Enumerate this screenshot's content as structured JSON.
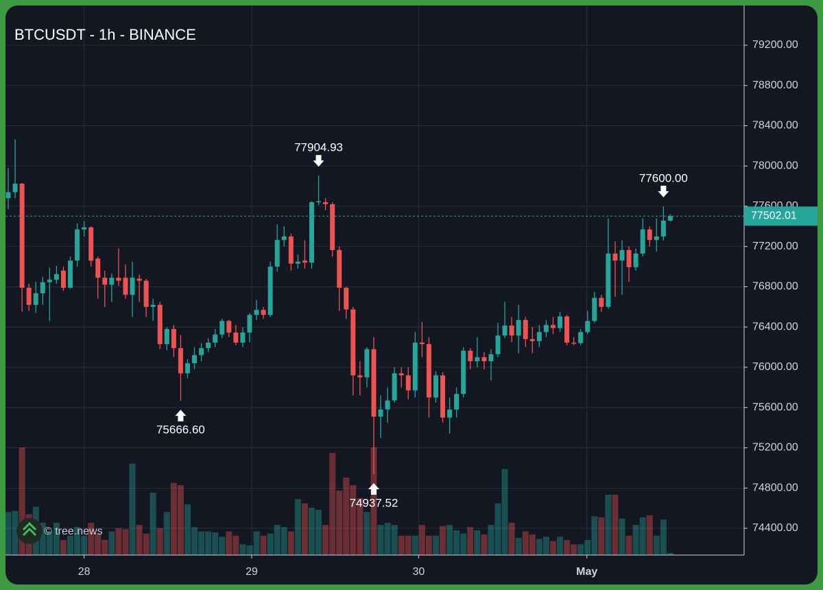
{
  "chart_data": {
    "type": "candlestick",
    "title": "BTCUSDT - 1h - BINANCE",
    "watermark": "© tree.news",
    "up_color": "#26a69a",
    "down_color": "#ef5350",
    "grid": true,
    "xlim": [
      -0.4,
      106.7
    ],
    "ylim": [
      74134,
      79595
    ],
    "vlim": [
      0,
      100
    ],
    "xticks": [
      {
        "value": 11,
        "label": "28"
      },
      {
        "value": 35.3,
        "label": "29"
      },
      {
        "value": 59.5,
        "label": "30"
      },
      {
        "value": 83.9,
        "label": "May"
      }
    ],
    "yticks": [
      {
        "value": 74400,
        "label": "74400.00"
      },
      {
        "value": 74800,
        "label": "74800.00"
      },
      {
        "value": 75200,
        "label": "75200.00"
      },
      {
        "value": 75600,
        "label": "75600.00"
      },
      {
        "value": 76000,
        "label": "76000.00"
      },
      {
        "value": 76400,
        "label": "76400.00"
      },
      {
        "value": 76800,
        "label": "76800.00"
      },
      {
        "value": 77200,
        "label": "77200.00"
      },
      {
        "value": 77600,
        "label": "77600.00"
      },
      {
        "value": 78000,
        "label": "78000.00"
      },
      {
        "value": 78400,
        "label": "78400.00"
      },
      {
        "value": 78800,
        "label": "78800.00"
      },
      {
        "value": 79200,
        "label": "79200.00"
      }
    ],
    "last_price": 77502.01,
    "annotations": [
      {
        "value": 77904.93,
        "kind": "high"
      },
      {
        "value": 75666.6,
        "label": "75666.60",
        "kind": "low"
      },
      {
        "value": 74937.52,
        "kind": "low"
      },
      {
        "value": 77600,
        "label": "77600.00",
        "kind": "high"
      }
    ],
    "open": [
      77680,
      77740,
      77825,
      76790,
      76620,
      76735,
      76845,
      76870,
      76960,
      76790,
      77060,
      77370,
      77390,
      77080,
      76890,
      76820,
      76890,
      76890,
      76720,
      76880,
      76860,
      76600,
      76620,
      76230,
      76380,
      76190,
      75940,
      76040,
      76120,
      76190,
      76245,
      76325,
      76460,
      76345,
      76245,
      76345,
      76520,
      76570,
      76520,
      77000,
      77265,
      77300,
      77030,
      77060,
      77040,
      77640,
      77640,
      77620,
      77165,
      76790,
      76575,
      75920,
      75900,
      76180,
      75510,
      75580,
      75670,
      75940,
      75920,
      75770,
      76245,
      76230,
      75700,
      75920,
      75500,
      75580,
      75735,
      76165,
      76060,
      76100,
      76060,
      76130,
      76315,
      76415,
      76315,
      76470,
      76280,
      76260,
      76350,
      76420,
      76390,
      76505,
      76245,
      76240,
      76350,
      76460,
      76690,
      76600,
      77130,
      77060,
      77165,
      76995,
      77130,
      77370,
      77265,
      77300,
      77457
    ],
    "high": [
      77980,
      78265,
      77830,
      76830,
      76850,
      76900,
      76990,
      77010,
      77000,
      77100,
      77430,
      77450,
      77400,
      77100,
      76960,
      76930,
      77180,
      77020,
      77050,
      76920,
      76880,
      76680,
      76650,
      76400,
      76420,
      76320,
      76080,
      76200,
      76240,
      76290,
      76380,
      76480,
      76470,
      76420,
      76400,
      76540,
      76670,
      76600,
      77050,
      77420,
      77400,
      77330,
      77120,
      77260,
      77650,
      77904.93,
      77680,
      77640,
      77200,
      76800,
      76600,
      76060,
      76200,
      76300,
      75720,
      75800,
      76000,
      76000,
      76000,
      76350,
      76450,
      76300,
      75960,
      75950,
      75700,
      75800,
      76200,
      76190,
      76300,
      76150,
      76180,
      76440,
      76650,
      76500,
      76620,
      76500,
      76400,
      76420,
      76470,
      76500,
      76550,
      76520,
      76300,
      76380,
      76560,
      76750,
      76720,
      77480,
      77250,
      77260,
      77200,
      77180,
      77480,
      77400,
      77480,
      77600,
      77520
    ],
    "low": [
      77570,
      77680,
      76550,
      76560,
      76540,
      76620,
      76460,
      76830,
      76760,
      76780,
      77000,
      77300,
      77000,
      76680,
      76600,
      76650,
      76810,
      76680,
      76500,
      76650,
      76500,
      76460,
      76180,
      76170,
      76100,
      75666.6,
      75890,
      75980,
      76060,
      76150,
      76200,
      76290,
      76300,
      76220,
      76200,
      76250,
      76470,
      76480,
      76500,
      76950,
      77200,
      76960,
      76980,
      76980,
      76980,
      77610,
      77560,
      77100,
      76560,
      76480,
      75720,
      75720,
      75800,
      74937.52,
      75300,
      75450,
      75650,
      75800,
      75680,
      75700,
      76100,
      75500,
      75650,
      75450,
      75340,
      75500,
      75700,
      75980,
      76000,
      75980,
      75870,
      76100,
      76290,
      76250,
      76140,
      76200,
      76140,
      76200,
      76300,
      76330,
      76350,
      76220,
      76220,
      76220,
      76330,
      76440,
      76550,
      76580,
      76700,
      76720,
      76850,
      76960,
      77100,
      77200,
      77150,
      77260,
      77450
    ],
    "close": [
      77740,
      77825,
      76790,
      76620,
      76735,
      76845,
      76870,
      76925,
      76790,
      77060,
      77370,
      77390,
      77060,
      76890,
      76820,
      76890,
      76860,
      76720,
      76890,
      76860,
      76600,
      76620,
      76230,
      76380,
      76190,
      75940,
      76040,
      76120,
      76190,
      76245,
      76325,
      76460,
      76345,
      76245,
      76345,
      76520,
      76570,
      76520,
      77000,
      77265,
      77300,
      77030,
      77050,
      77040,
      77640,
      77650,
      77620,
      77165,
      76790,
      76575,
      75920,
      75900,
      76180,
      75510,
      75580,
      75670,
      75940,
      75920,
      75770,
      76245,
      76230,
      75700,
      75920,
      75500,
      75580,
      75735,
      76165,
      76060,
      76100,
      76060,
      76130,
      76315,
      76415,
      76315,
      76470,
      76280,
      76260,
      76350,
      76420,
      76390,
      76505,
      76245,
      76240,
      76350,
      76460,
      76690,
      76600,
      77130,
      77060,
      77165,
      76995,
      77130,
      77370,
      77265,
      77300,
      77457,
      77502.01
    ],
    "volume": [
      40,
      41,
      100,
      38,
      45,
      30,
      22,
      30,
      14,
      18,
      26,
      18,
      30,
      20,
      14,
      22,
      25,
      24,
      85,
      28,
      20,
      58,
      25,
      40,
      67,
      65,
      47,
      26,
      22,
      22,
      21,
      17,
      22,
      18,
      10,
      9,
      22,
      18,
      20,
      28,
      26,
      22,
      52,
      48,
      44,
      42,
      28,
      95,
      60,
      72,
      65,
      53,
      40,
      100,
      28,
      30,
      28,
      18,
      18,
      18,
      28,
      18,
      18,
      27,
      28,
      23,
      20,
      26,
      23,
      19,
      28,
      48,
      80,
      30,
      16,
      22,
      19,
      15,
      17,
      13,
      17,
      14,
      10,
      10,
      14,
      36,
      35,
      56,
      56,
      34,
      18,
      28,
      35,
      37,
      18,
      33,
      2
    ]
  }
}
